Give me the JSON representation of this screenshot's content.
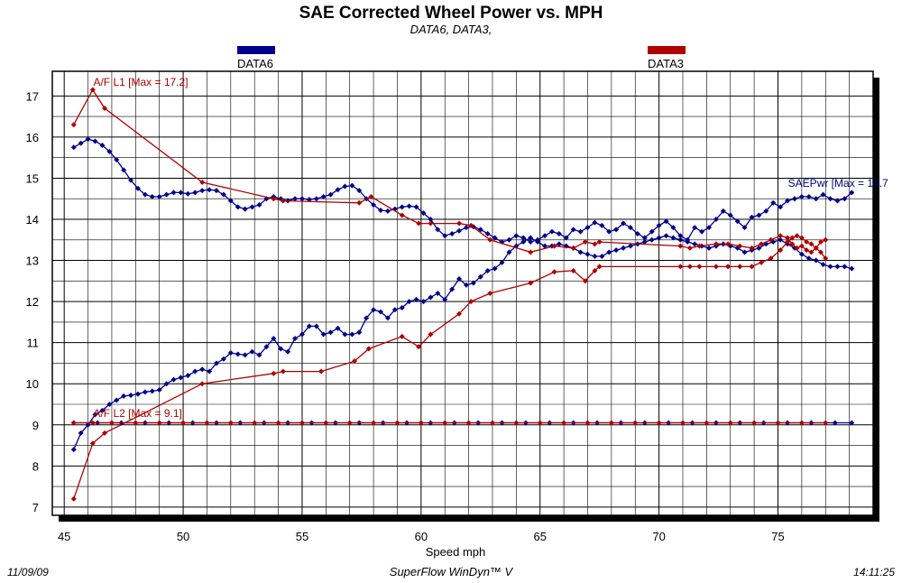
{
  "header": {
    "title": "SAE Corrected Wheel Power vs. MPH",
    "subtitle": "DATA6, DATA3,"
  },
  "legend": {
    "items": [
      {
        "label": "DATA6",
        "color": "#00008b"
      },
      {
        "label": "DATA3",
        "color": "#b00000"
      }
    ]
  },
  "footer": {
    "date": "11/09/09",
    "software": "SuperFlow WinDyn™ V",
    "time": "14:11:25"
  },
  "chart_data": {
    "type": "line",
    "title": "SAE Corrected Wheel Power vs. MPH",
    "subtitle": "DATA6, DATA3,",
    "xlabel": "Speed   mph",
    "ylabel": "",
    "xlim": [
      44.5,
      79.0
    ],
    "ylim": [
      6.8,
      17.6
    ],
    "xticks": [
      45,
      50,
      55,
      60,
      65,
      70,
      75
    ],
    "yticks": [
      7,
      8,
      9,
      10,
      11,
      12,
      13,
      14,
      15,
      16,
      17
    ],
    "grid": true,
    "legend_position": "top",
    "annotations": [
      {
        "text": "A/F L1 [Max = 17.2]",
        "x": 46.3,
        "y": 17.2,
        "color": "#b00000"
      },
      {
        "text": "SAEPwr [Max = 14.7",
        "x": 75.5,
        "y": 14.75,
        "color": "#00008b"
      },
      {
        "text": "A/F L2 [Max = 9.1]",
        "x": 46.3,
        "y": 9.15,
        "color": "#b00000"
      }
    ],
    "series": [
      {
        "name": "DATA6",
        "color": "#00008b",
        "x": [
          45.4,
          45.7,
          46.0,
          46.3,
          46.6,
          46.9,
          47.2,
          47.5,
          47.8,
          48.1,
          48.4,
          48.7,
          49.0,
          49.3,
          49.6,
          49.9,
          50.2,
          50.5,
          50.8,
          51.1,
          51.4,
          51.7,
          52.0,
          52.3,
          52.6,
          52.9,
          53.2,
          53.5,
          53.8,
          54.1,
          54.4,
          54.7,
          55.0,
          55.3,
          55.6,
          55.9,
          56.2,
          56.5,
          56.8,
          57.1,
          57.4,
          57.7,
          58.0,
          58.3,
          58.6,
          58.9,
          59.2,
          59.5,
          59.8,
          60.1,
          60.4,
          60.7,
          61.0,
          61.3,
          61.6,
          61.9,
          62.2,
          62.5,
          62.8,
          63.1,
          63.4,
          63.7,
          64.0,
          64.3,
          64.6,
          64.9,
          65.2,
          65.5,
          65.8,
          66.1,
          66.4,
          66.7,
          67.0,
          67.3,
          67.6,
          67.9,
          68.2,
          68.5,
          68.8,
          69.1,
          69.4,
          69.7,
          70.0,
          70.3,
          70.6,
          70.9,
          71.2,
          71.5,
          71.8,
          72.1,
          72.4,
          72.7,
          73.0,
          73.3,
          73.6,
          73.9,
          74.2,
          74.5,
          74.8,
          75.1,
          75.4,
          75.7,
          76.0,
          76.3,
          76.6,
          76.9,
          77.2,
          77.5,
          77.8,
          78.1
        ],
        "y": [
          8.4,
          8.8,
          9.0,
          9.25,
          9.35,
          9.5,
          9.6,
          9.7,
          9.72,
          9.75,
          9.8,
          9.82,
          9.85,
          10.0,
          10.1,
          10.15,
          10.2,
          10.3,
          10.35,
          10.3,
          10.5,
          10.6,
          10.75,
          10.72,
          10.7,
          10.78,
          10.7,
          10.9,
          11.1,
          10.85,
          10.78,
          11.1,
          11.2,
          11.4,
          11.4,
          11.2,
          11.25,
          11.35,
          11.2,
          11.2,
          11.25,
          11.6,
          11.8,
          11.75,
          11.6,
          11.8,
          11.85,
          12.0,
          12.05,
          12.0,
          12.1,
          12.2,
          12.05,
          12.3,
          12.55,
          12.4,
          12.45,
          12.6,
          12.75,
          12.8,
          12.95,
          13.2,
          13.35,
          13.45,
          13.55,
          13.45,
          13.35,
          13.35,
          13.4,
          13.35,
          13.3,
          13.2,
          13.15,
          13.1,
          13.1,
          13.2,
          13.25,
          13.3,
          13.35,
          13.4,
          13.45,
          13.5,
          13.55,
          13.6,
          13.55,
          13.5,
          13.45,
          13.4,
          13.35,
          13.3,
          13.35,
          13.4,
          13.35,
          13.3,
          13.2,
          13.25,
          13.3,
          13.4,
          13.45,
          13.5,
          13.4,
          13.3,
          13.15,
          13.05,
          13.0,
          12.9,
          12.85,
          12.85,
          12.85,
          12.8
        ]
      },
      {
        "name": "DATA6",
        "color": "#00008b",
        "x": [
          45.4,
          45.7,
          46.0,
          46.3,
          46.6,
          46.9,
          47.2,
          47.5,
          47.8,
          48.1,
          48.4,
          48.7,
          49.0,
          49.3,
          49.6,
          49.9,
          50.2,
          50.5,
          50.8,
          51.1,
          51.4,
          51.7,
          52.0,
          52.3,
          52.6,
          52.9,
          53.2,
          53.5,
          53.8,
          54.1,
          54.4,
          54.7,
          55.0,
          55.3,
          55.6,
          55.9,
          56.2,
          56.5,
          56.8,
          57.1,
          57.4,
          57.7,
          58.0,
          58.3,
          58.6,
          58.9,
          59.2,
          59.5,
          59.8,
          60.1,
          60.4,
          60.7,
          61.0,
          61.3,
          61.6,
          61.9,
          62.2,
          62.5,
          62.8,
          63.1,
          63.4,
          63.7,
          64.0,
          64.3,
          64.6,
          64.9,
          65.2,
          65.5,
          65.8,
          66.1,
          66.4,
          66.7,
          67.0,
          67.3,
          67.6,
          67.9,
          68.2,
          68.5,
          68.8,
          69.1,
          69.4,
          69.7,
          70.0,
          70.3,
          70.6,
          70.9,
          71.2,
          71.5,
          71.8,
          72.1,
          72.4,
          72.7,
          73.0,
          73.3,
          73.6,
          73.9,
          74.2,
          74.5,
          74.8,
          75.1,
          75.4,
          75.7,
          76.0,
          76.3,
          76.6,
          76.9,
          77.2,
          77.5,
          77.8,
          78.1
        ],
        "y": [
          15.75,
          15.85,
          15.95,
          15.9,
          15.8,
          15.65,
          15.45,
          15.2,
          14.95,
          14.75,
          14.6,
          14.55,
          14.55,
          14.6,
          14.65,
          14.65,
          14.62,
          14.65,
          14.7,
          14.72,
          14.7,
          14.6,
          14.45,
          14.3,
          14.25,
          14.3,
          14.35,
          14.5,
          14.55,
          14.5,
          14.45,
          14.5,
          14.5,
          14.48,
          14.5,
          14.55,
          14.6,
          14.72,
          14.8,
          14.82,
          14.7,
          14.5,
          14.35,
          14.22,
          14.2,
          14.25,
          14.3,
          14.32,
          14.3,
          14.15,
          14.0,
          13.75,
          13.6,
          13.65,
          13.72,
          13.8,
          13.82,
          13.75,
          13.65,
          13.55,
          13.45,
          13.5,
          13.6,
          13.55,
          13.45,
          13.5,
          13.6,
          13.7,
          13.65,
          13.55,
          13.75,
          13.7,
          13.8,
          13.92,
          13.85,
          13.7,
          13.75,
          13.9,
          13.8,
          13.65,
          13.55,
          13.7,
          13.85,
          13.95,
          13.8,
          13.6,
          13.5,
          13.8,
          13.7,
          13.8,
          14.0,
          14.2,
          14.1,
          13.95,
          13.8,
          14.05,
          14.1,
          14.2,
          14.4,
          14.3,
          14.45,
          14.5,
          14.55,
          14.55,
          14.5,
          14.6,
          14.5,
          14.45,
          14.5,
          14.65
        ]
      },
      {
        "name": "DATA3",
        "color": "#b00000",
        "x": [
          45.4,
          46.2,
          46.7,
          50.8,
          53.8,
          54.2,
          57.4,
          57.9,
          59.2,
          59.9,
          60.4,
          61.6,
          62.1,
          62.9,
          64.6,
          65.6,
          66.4,
          66.9,
          67.3,
          67.5,
          70.9,
          71.3,
          71.7,
          72.4,
          72.9,
          73.4,
          73.9,
          74.3,
          74.7,
          75.1,
          75.4,
          75.6,
          75.8,
          76.0,
          76.2,
          76.4,
          76.6,
          76.8,
          77.0
        ],
        "y": [
          16.3,
          17.15,
          16.7,
          14.9,
          14.5,
          14.45,
          14.4,
          14.55,
          14.1,
          13.9,
          13.9,
          13.9,
          13.85,
          13.5,
          13.2,
          13.35,
          13.3,
          13.45,
          13.4,
          13.45,
          13.35,
          13.3,
          13.35,
          13.4,
          13.4,
          13.35,
          13.3,
          13.4,
          13.5,
          13.6,
          13.55,
          13.4,
          13.3,
          13.35,
          13.25,
          13.2,
          13.3,
          13.45,
          13.5
        ]
      },
      {
        "name": "DATA3",
        "color": "#b00000",
        "x": [
          45.4,
          46.2,
          46.7,
          50.8,
          53.8,
          54.2,
          55.8,
          57.2,
          57.8,
          59.2,
          59.9,
          60.4,
          61.6,
          62.1,
          62.9,
          64.6,
          65.6,
          66.4,
          66.9,
          67.3,
          67.5,
          70.9,
          71.3,
          71.7,
          72.4,
          72.9,
          73.4,
          73.9,
          74.3,
          74.7,
          75.1,
          75.4,
          75.6,
          75.8,
          76.0,
          76.2,
          76.4,
          76.6,
          76.8,
          77.0
        ],
        "y": [
          7.2,
          8.55,
          8.8,
          10.0,
          10.25,
          10.3,
          10.3,
          10.55,
          10.85,
          11.15,
          10.9,
          11.2,
          11.7,
          12.0,
          12.2,
          12.45,
          12.72,
          12.75,
          12.5,
          12.75,
          12.85,
          12.85,
          12.85,
          12.85,
          12.85,
          12.85,
          12.85,
          12.85,
          12.95,
          13.05,
          13.25,
          13.45,
          13.55,
          13.6,
          13.55,
          13.45,
          13.4,
          13.3,
          13.2,
          13.05
        ]
      },
      {
        "name": "DATA6",
        "color": "#00008b",
        "x": [
          45.4,
          46.4,
          47.4,
          48.4,
          49.4,
          50.4,
          51.4,
          52.4,
          53.4,
          54.4,
          55.4,
          56.4,
          57.4,
          58.4,
          59.4,
          60.4,
          61.4,
          62.4,
          63.4,
          64.4,
          65.4,
          66.4,
          67.4,
          68.4,
          69.4,
          70.4,
          71.4,
          72.4,
          73.4,
          74.4,
          75.4,
          76.4,
          77.4,
          78.1
        ],
        "y": [
          9.05,
          9.05,
          9.05,
          9.05,
          9.05,
          9.05,
          9.05,
          9.05,
          9.05,
          9.05,
          9.05,
          9.05,
          9.05,
          9.05,
          9.05,
          9.05,
          9.05,
          9.05,
          9.05,
          9.05,
          9.05,
          9.05,
          9.05,
          9.05,
          9.05,
          9.05,
          9.05,
          9.05,
          9.05,
          9.05,
          9.05,
          9.05,
          9.05,
          9.05
        ]
      },
      {
        "name": "DATA3",
        "color": "#b00000",
        "x": [
          45.4,
          46.2,
          47.0,
          48.0,
          49.0,
          50.0,
          51.0,
          52.0,
          53.0,
          54.0,
          55.0,
          56.0,
          57.0,
          58.0,
          59.0,
          60.0,
          61.0,
          62.0,
          63.0,
          64.0,
          65.0,
          66.0,
          67.0,
          68.0,
          69.0,
          70.0,
          71.0,
          72.0,
          73.0,
          74.0,
          75.0,
          76.0,
          77.0
        ],
        "y": [
          9.05,
          9.05,
          9.05,
          9.05,
          9.05,
          9.05,
          9.05,
          9.05,
          9.05,
          9.05,
          9.05,
          9.05,
          9.05,
          9.05,
          9.05,
          9.05,
          9.05,
          9.05,
          9.05,
          9.05,
          9.05,
          9.05,
          9.05,
          9.05,
          9.05,
          9.05,
          9.05,
          9.05,
          9.05,
          9.05,
          9.05,
          9.05,
          9.05
        ]
      }
    ]
  }
}
